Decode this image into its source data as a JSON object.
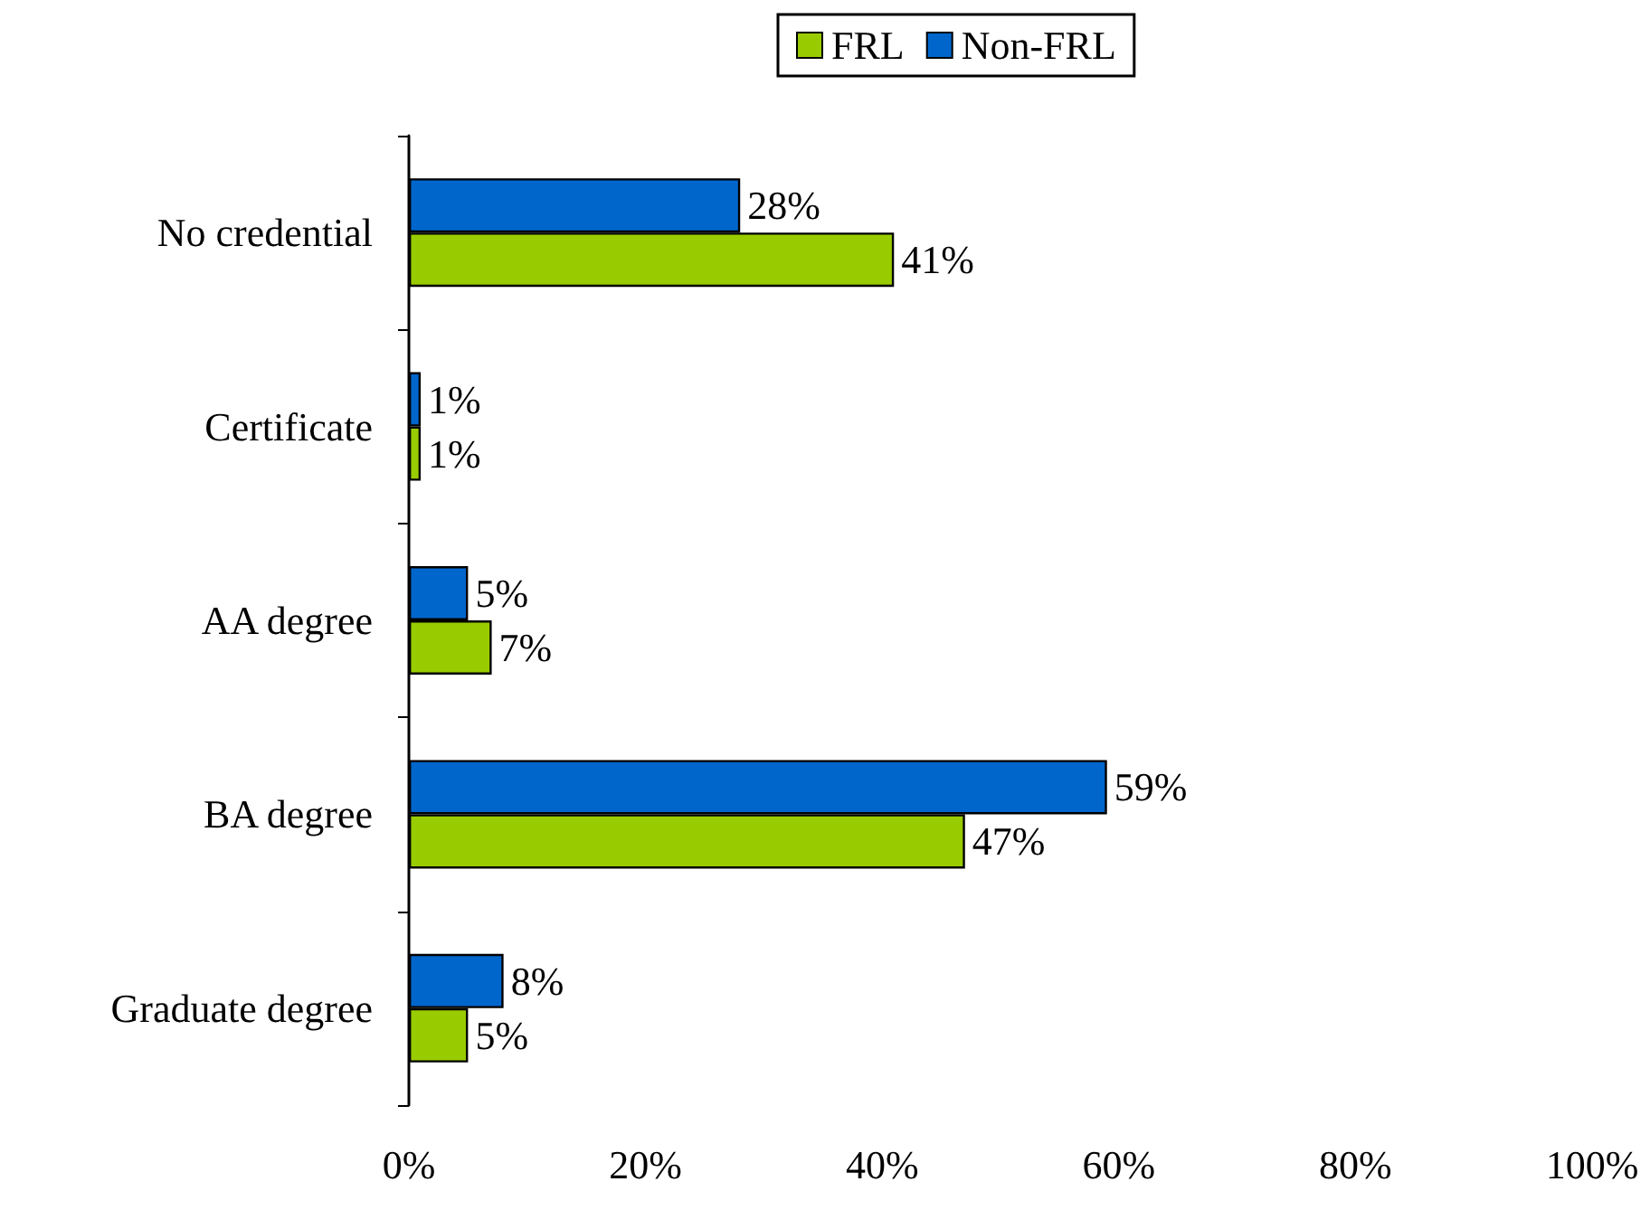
{
  "chart_data": {
    "type": "bar",
    "orientation": "horizontal",
    "categories": [
      "No credential",
      "Certificate",
      "AA degree",
      "BA degree",
      "Graduate degree"
    ],
    "series": [
      {
        "name": "FRL",
        "color": "#99cc00",
        "values": [
          41,
          1,
          7,
          47,
          5
        ],
        "value_labels": [
          "41%",
          "1%",
          "7%",
          "47%",
          "5%"
        ]
      },
      {
        "name": "Non-FRL",
        "color": "#0066cc",
        "values": [
          28,
          1,
          5,
          59,
          8
        ],
        "value_labels": [
          "28%",
          "1%",
          "5%",
          "59%",
          "8%"
        ]
      }
    ],
    "xlim": [
      0,
      100
    ],
    "xticks": [
      {
        "value": 0,
        "label": "0%"
      },
      {
        "value": 20,
        "label": "20%"
      },
      {
        "value": 40,
        "label": "40%"
      },
      {
        "value": 60,
        "label": "60%"
      },
      {
        "value": 80,
        "label": "80%"
      },
      {
        "value": 100,
        "label": "100%"
      }
    ],
    "grid": false,
    "legend": "top"
  }
}
